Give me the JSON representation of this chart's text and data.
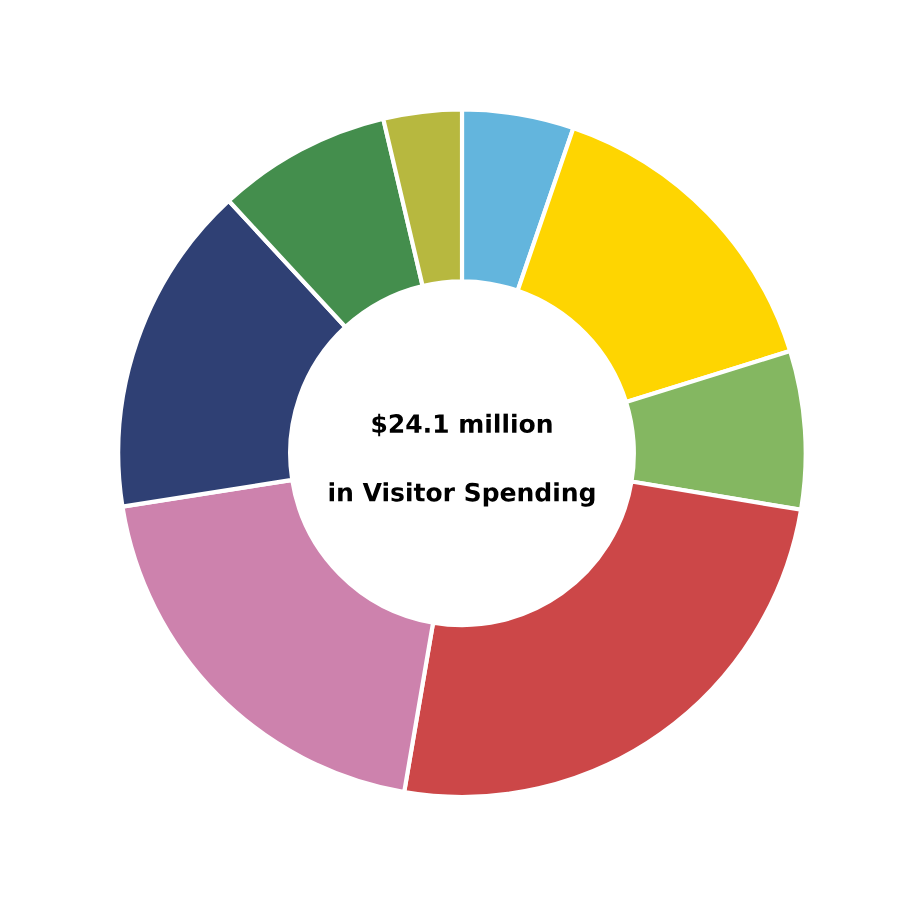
{
  "chart_data": {
    "type": "donut",
    "categories": [
      null,
      null,
      null,
      null,
      null,
      null,
      null,
      null
    ],
    "values": [
      5.25,
      14.94,
      7.44,
      25.06,
      19.83,
      15.61,
      8.19,
      3.68
    ],
    "colors": [
      "#63b5dd",
      "#fed501",
      "#84b761",
      "#cc4748",
      "#cd82ad",
      "#2f4074",
      "#448e4d",
      "#b7b83f"
    ],
    "annotations": [
      "$24.1 million",
      "in Visitor Spending"
    ],
    "legend": false
  }
}
